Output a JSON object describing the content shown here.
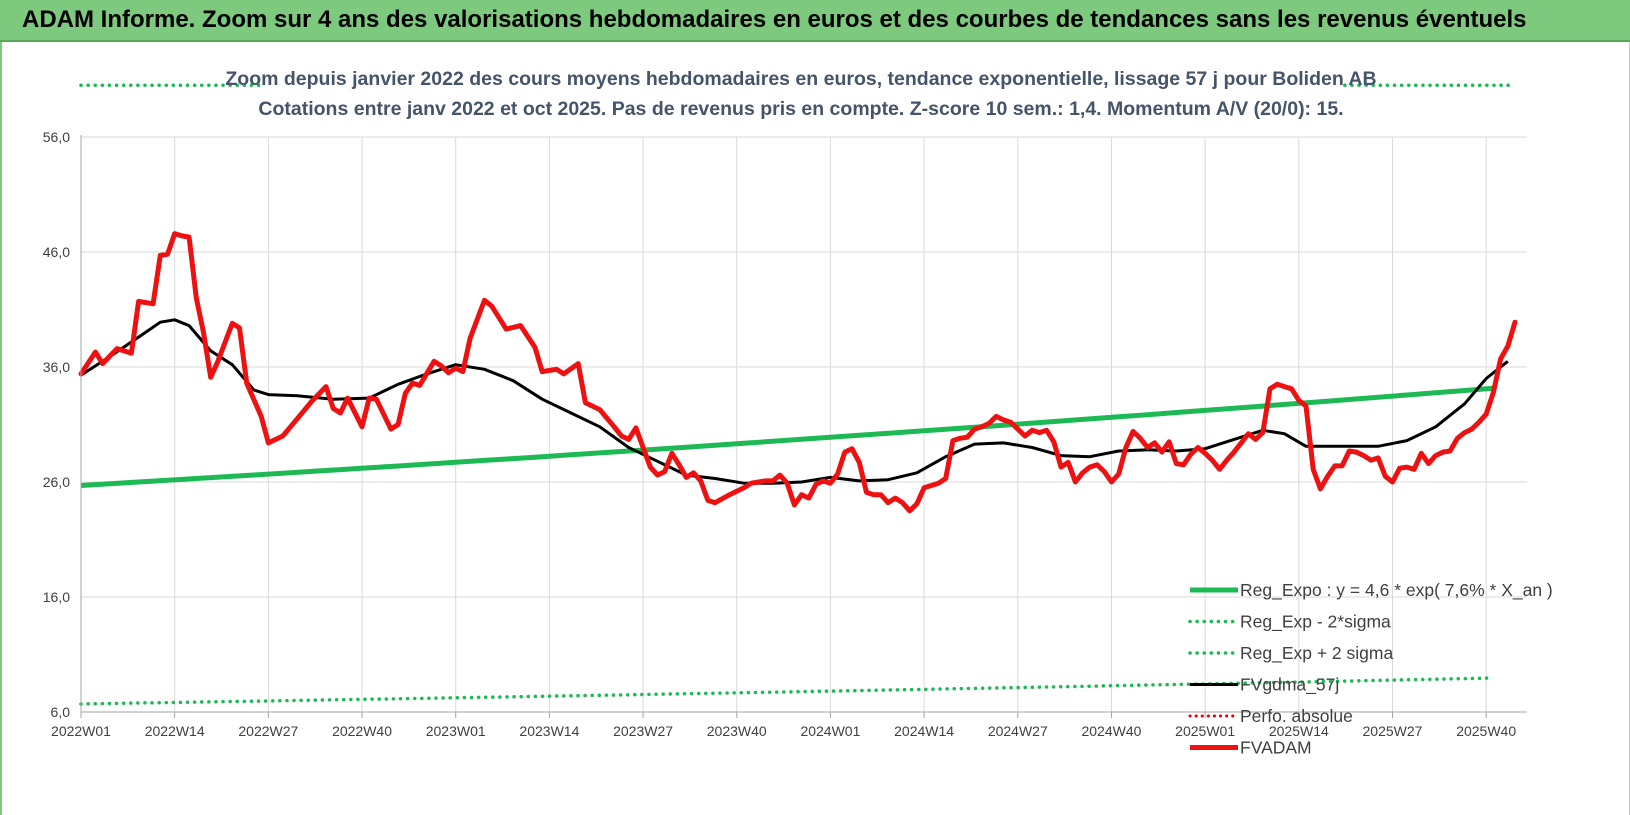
{
  "page": {
    "banner_title": "ADAM Informe. Zoom sur 4 ans des valorisations hebdomadaires en euros et des courbes de tendances sans les revenus éventuels"
  },
  "colors": {
    "banner_bg": "#7dc97d",
    "reg_expo": "#1db954",
    "reg_sigma": "#1db954",
    "fvgdma": "#000000",
    "perfo": "#e00000",
    "fvadam": "#ee1111"
  },
  "chart_data": {
    "type": "line",
    "title_line1": "Zoom depuis janvier 2022 des cours moyens hebdomadaires en euros, tendance exponentielle, lissage 57 j pour Boliden AB",
    "title_line2": "Cotations entre janv 2022 et oct 2025. Pas de revenus pris en compte. Z-score 10 sem.: 1,4. Momentum A/V (20/0): 15.",
    "ylim": [
      6,
      56
    ],
    "yticks": [
      "6,0",
      "16,0",
      "26,0",
      "36,0",
      "46,0",
      "56,0"
    ],
    "ytick_values": [
      6,
      16,
      26,
      36,
      46,
      56
    ],
    "week_count": 199,
    "xtick_labels": [
      "2022W01",
      "2022W14",
      "2022W27",
      "2022W40",
      "2023W01",
      "2023W14",
      "2023W27",
      "2023W40",
      "2024W01",
      "2024W14",
      "2024W27",
      "2024W40",
      "2025W01",
      "2025W14",
      "2025W27",
      "2025W40"
    ],
    "xtick_week_index": [
      0,
      13,
      26,
      39,
      52,
      65,
      78,
      91,
      104,
      117,
      130,
      143,
      156,
      169,
      182,
      195
    ],
    "grid": "vertical and horizontal light gray",
    "legend_position": "bottom-right",
    "series": [
      {
        "name": "Reg_Expo : y = 4,6 * exp( 7,6% *  X_an )",
        "style": "solid-thick",
        "start_value": 25.7,
        "end_value": 34.3
      },
      {
        "name": "Reg_Exp - 2*sigma",
        "style": "dotted",
        "start_value": 6.7,
        "end_value": 9.0
      },
      {
        "name": "Reg_Exp + 2 sigma",
        "style": "dotted",
        "start_value": 60.5,
        "end_value": 60.5
      },
      {
        "name": "FVgdma_57j",
        "style": "solid",
        "points": [
          [
            0,
            35.3
          ],
          [
            4,
            36.9
          ],
          [
            8,
            38.6
          ],
          [
            11,
            39.9
          ],
          [
            13,
            40.1
          ],
          [
            15,
            39.6
          ],
          [
            18,
            37.4
          ],
          [
            21,
            36.2
          ],
          [
            24,
            34.0
          ],
          [
            26,
            33.6
          ],
          [
            30,
            33.5
          ],
          [
            35,
            33.2
          ],
          [
            40,
            33.3
          ],
          [
            44,
            34.5
          ],
          [
            48,
            35.4
          ],
          [
            52,
            36.2
          ],
          [
            56,
            35.8
          ],
          [
            60,
            34.8
          ],
          [
            64,
            33.2
          ],
          [
            68,
            32.0
          ],
          [
            72,
            30.8
          ],
          [
            76,
            29.0
          ],
          [
            80,
            27.8
          ],
          [
            84,
            26.6
          ],
          [
            88,
            26.3
          ],
          [
            92,
            25.9
          ],
          [
            96,
            25.9
          ],
          [
            100,
            26.0
          ],
          [
            104,
            26.4
          ],
          [
            108,
            26.1
          ],
          [
            112,
            26.2
          ],
          [
            116,
            26.8
          ],
          [
            120,
            28.2
          ],
          [
            124,
            29.3
          ],
          [
            128,
            29.4
          ],
          [
            132,
            29.0
          ],
          [
            136,
            28.3
          ],
          [
            140,
            28.2
          ],
          [
            144,
            28.7
          ],
          [
            148,
            28.8
          ],
          [
            152,
            28.7
          ],
          [
            156,
            28.9
          ],
          [
            160,
            29.7
          ],
          [
            164,
            30.5
          ],
          [
            167,
            30.2
          ],
          [
            170,
            29.1
          ],
          [
            180,
            29.1
          ],
          [
            184,
            29.6
          ],
          [
            188,
            30.8
          ],
          [
            192,
            32.8
          ],
          [
            195,
            35.0
          ],
          [
            198,
            36.5
          ]
        ]
      },
      {
        "name": "Perfo. absolue",
        "style": "dotted",
        "points": []
      },
      {
        "name": "FVADAM",
        "style": "solid-thick",
        "points": [
          [
            0,
            35.4
          ],
          [
            2,
            37.3
          ],
          [
            3,
            36.3
          ],
          [
            5,
            37.6
          ],
          [
            7,
            37.2
          ],
          [
            8,
            41.7
          ],
          [
            10,
            41.5
          ],
          [
            11,
            45.7
          ],
          [
            12,
            45.8
          ],
          [
            13,
            47.6
          ],
          [
            14,
            47.4
          ],
          [
            15,
            47.3
          ],
          [
            16,
            42.0
          ],
          [
            17,
            39.0
          ],
          [
            18,
            35.1
          ],
          [
            19,
            36.5
          ],
          [
            21,
            39.8
          ],
          [
            22,
            39.4
          ],
          [
            23,
            34.6
          ],
          [
            25,
            31.7
          ],
          [
            26,
            29.4
          ],
          [
            28,
            30.0
          ],
          [
            30,
            31.5
          ],
          [
            32,
            33.0
          ],
          [
            34,
            34.3
          ],
          [
            35,
            32.4
          ],
          [
            36,
            32.0
          ],
          [
            37,
            33.3
          ],
          [
            39,
            30.8
          ],
          [
            40,
            33.3
          ],
          [
            41,
            33.2
          ],
          [
            43,
            30.6
          ],
          [
            44,
            31.0
          ],
          [
            45,
            33.7
          ],
          [
            46,
            34.6
          ],
          [
            47,
            34.4
          ],
          [
            49,
            36.5
          ],
          [
            50,
            36.1
          ],
          [
            51,
            35.5
          ],
          [
            52,
            35.9
          ],
          [
            53,
            35.6
          ],
          [
            54,
            38.5
          ],
          [
            56,
            41.8
          ],
          [
            57,
            41.3
          ],
          [
            59,
            39.3
          ],
          [
            61,
            39.6
          ],
          [
            63,
            37.7
          ],
          [
            64,
            35.6
          ],
          [
            66,
            35.8
          ],
          [
            67,
            35.4
          ],
          [
            69,
            36.3
          ],
          [
            70,
            32.9
          ],
          [
            72,
            32.3
          ],
          [
            74,
            30.8
          ],
          [
            75,
            30.0
          ],
          [
            76,
            29.7
          ],
          [
            77,
            30.7
          ],
          [
            79,
            27.3
          ],
          [
            80,
            26.6
          ],
          [
            81,
            26.9
          ],
          [
            82,
            28.5
          ],
          [
            83,
            27.5
          ],
          [
            84,
            26.4
          ],
          [
            85,
            26.8
          ],
          [
            86,
            26.1
          ],
          [
            87,
            24.4
          ],
          [
            88,
            24.2
          ],
          [
            90,
            24.9
          ],
          [
            92,
            25.5
          ],
          [
            93,
            25.9
          ],
          [
            95,
            26.1
          ],
          [
            96,
            26.1
          ],
          [
            97,
            26.6
          ],
          [
            98,
            25.9
          ],
          [
            99,
            24.0
          ],
          [
            100,
            24.9
          ],
          [
            101,
            24.6
          ],
          [
            102,
            25.8
          ],
          [
            103,
            26.1
          ],
          [
            104,
            25.9
          ],
          [
            105,
            26.7
          ],
          [
            106,
            28.6
          ],
          [
            107,
            28.9
          ],
          [
            108,
            27.7
          ],
          [
            109,
            25.1
          ],
          [
            110,
            24.9
          ],
          [
            111,
            24.9
          ],
          [
            112,
            24.2
          ],
          [
            113,
            24.6
          ],
          [
            114,
            24.2
          ],
          [
            115,
            23.5
          ],
          [
            116,
            24.1
          ],
          [
            117,
            25.5
          ],
          [
            119,
            25.9
          ],
          [
            120,
            26.3
          ],
          [
            121,
            29.6
          ],
          [
            122,
            29.8
          ],
          [
            123,
            29.9
          ],
          [
            124,
            30.6
          ],
          [
            125,
            30.8
          ],
          [
            126,
            31.1
          ],
          [
            127,
            31.7
          ],
          [
            128,
            31.4
          ],
          [
            129,
            31.2
          ],
          [
            130,
            30.6
          ],
          [
            131,
            30.0
          ],
          [
            132,
            30.5
          ],
          [
            133,
            30.3
          ],
          [
            134,
            30.5
          ],
          [
            135,
            29.5
          ],
          [
            136,
            27.3
          ],
          [
            137,
            27.7
          ],
          [
            138,
            26.0
          ],
          [
            139,
            26.8
          ],
          [
            140,
            27.3
          ],
          [
            141,
            27.5
          ],
          [
            142,
            26.9
          ],
          [
            143,
            26.0
          ],
          [
            144,
            26.7
          ],
          [
            145,
            29.0
          ],
          [
            146,
            30.4
          ],
          [
            147,
            29.8
          ],
          [
            148,
            29.0
          ],
          [
            149,
            29.4
          ],
          [
            150,
            28.6
          ],
          [
            151,
            29.5
          ],
          [
            152,
            27.6
          ],
          [
            153,
            27.5
          ],
          [
            154,
            28.4
          ],
          [
            155,
            29.0
          ],
          [
            156,
            28.5
          ],
          [
            157,
            27.9
          ],
          [
            158,
            27.1
          ],
          [
            159,
            27.9
          ],
          [
            160,
            28.6
          ],
          [
            161,
            29.4
          ],
          [
            162,
            30.2
          ],
          [
            163,
            29.7
          ],
          [
            164,
            30.3
          ],
          [
            165,
            34.1
          ],
          [
            166,
            34.5
          ],
          [
            167,
            34.3
          ],
          [
            168,
            34.1
          ],
          [
            169,
            33.1
          ],
          [
            170,
            32.6
          ],
          [
            171,
            27.1
          ],
          [
            172,
            25.4
          ],
          [
            173,
            26.5
          ],
          [
            174,
            27.4
          ],
          [
            175,
            27.4
          ],
          [
            176,
            28.7
          ],
          [
            177,
            28.6
          ],
          [
            178,
            28.3
          ],
          [
            179,
            27.9
          ],
          [
            180,
            28.1
          ],
          [
            181,
            26.5
          ],
          [
            182,
            26.0
          ],
          [
            183,
            27.2
          ],
          [
            184,
            27.3
          ],
          [
            185,
            27.1
          ],
          [
            186,
            28.5
          ],
          [
            187,
            27.6
          ],
          [
            188,
            28.3
          ],
          [
            189,
            28.6
          ],
          [
            190,
            28.7
          ],
          [
            191,
            29.8
          ],
          [
            192,
            30.3
          ],
          [
            193,
            30.6
          ],
          [
            194,
            31.2
          ],
          [
            195,
            31.9
          ],
          [
            196,
            33.8
          ],
          [
            197,
            36.7
          ],
          [
            198,
            37.8
          ],
          [
            199,
            39.9
          ]
        ]
      }
    ]
  }
}
